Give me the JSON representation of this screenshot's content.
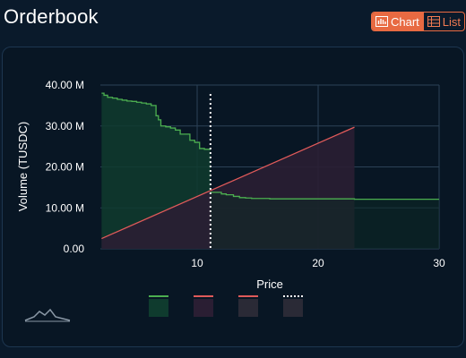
{
  "header": {
    "title": "Orderbook"
  },
  "view_toggle": {
    "chart_label": "Chart",
    "list_label": "List",
    "active": "chart",
    "icons": {
      "chart": "bar-chart-icon",
      "list": "list-icon"
    }
  },
  "colors": {
    "accent": "#e86a42",
    "bid_line": "#4caf50",
    "bid_fill": "#0f3b2e",
    "ask_line": "#e05a5a",
    "ask_fill": "#2a1e33",
    "mid_line": "#ffffff"
  },
  "chart_data": {
    "type": "area",
    "title": "",
    "xlabel": "Price",
    "ylabel": "Volume (TUSDC)",
    "xlim": [
      2,
      30
    ],
    "ylim": [
      0,
      40000000
    ],
    "x_ticks": [
      10,
      20,
      30
    ],
    "x_tick_labels": [
      "10",
      "20",
      "30"
    ],
    "y_ticks": [
      0,
      10000000,
      20000000,
      30000000,
      40000000
    ],
    "y_tick_labels": [
      "0.00",
      "10.00 M",
      "20.00 M",
      "30.00 M",
      "40.00 M"
    ],
    "grid": true,
    "mid_price": 11.1,
    "series": [
      {
        "id": "bids",
        "x": [
          2.1,
          2.3,
          2.6,
          3.0,
          3.4,
          3.8,
          4.2,
          4.6,
          5.0,
          5.4,
          5.8,
          6.2,
          6.6,
          6.8,
          7.0,
          7.4,
          7.8,
          8.2,
          8.6,
          9.0,
          9.4,
          9.8,
          10.2,
          10.6,
          11.1
        ],
        "y": [
          38000000,
          37500000,
          37000000,
          36800000,
          36500000,
          36300000,
          36100000,
          36000000,
          35800000,
          35600000,
          35400000,
          35000000,
          32500000,
          31500000,
          30000000,
          29800000,
          29500000,
          29000000,
          28000000,
          28000000,
          26500000,
          26000000,
          24500000,
          24300000,
          24300000
        ]
      },
      {
        "id": "asks_fills",
        "x": [
          11.1,
          12.0,
          12.4,
          13.0,
          13.5,
          14.0,
          14.5,
          15.0,
          16.0,
          18.0,
          20.0,
          23.0,
          25.0,
          27.0,
          30.0
        ],
        "y": [
          13800000,
          13400000,
          13200000,
          12800000,
          12500000,
          12400000,
          12300000,
          12300000,
          12200000,
          12200000,
          12200000,
          12100000,
          12100000,
          12100000,
          12100000
        ]
      },
      {
        "id": "asks",
        "x": [
          2.1,
          23.0
        ],
        "y": [
          2500000,
          29700000
        ]
      }
    ]
  }
}
